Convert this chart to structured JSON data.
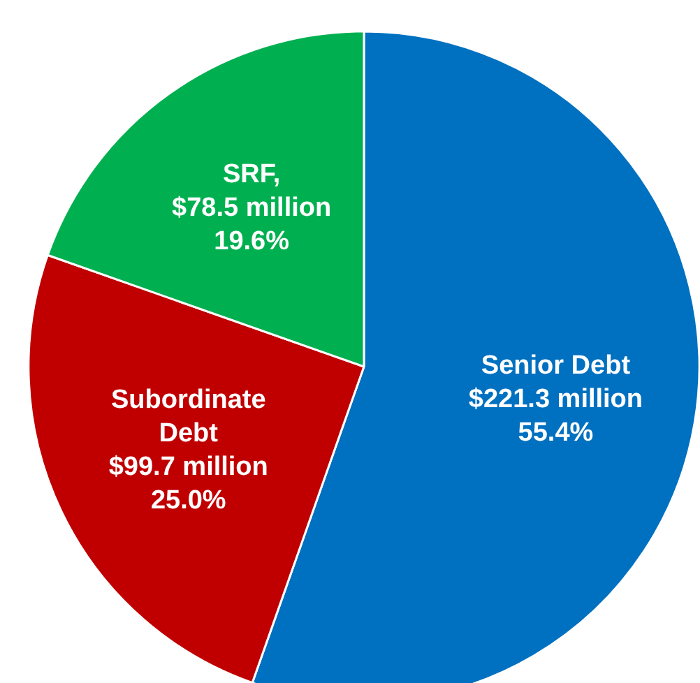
{
  "chart_data": {
    "type": "pie",
    "categories": [
      "Senior Debt\n$221.3 million",
      "Subordinate\nDebt\n$99.7 million",
      "SRF,\n$78.5 million"
    ],
    "values": [
      55.4,
      25.0,
      19.6
    ],
    "colors": [
      "#0070c0",
      "#c00000",
      "#00b050"
    ],
    "value_labels": [
      "55.4%",
      "25.0%",
      "19.6%"
    ]
  }
}
